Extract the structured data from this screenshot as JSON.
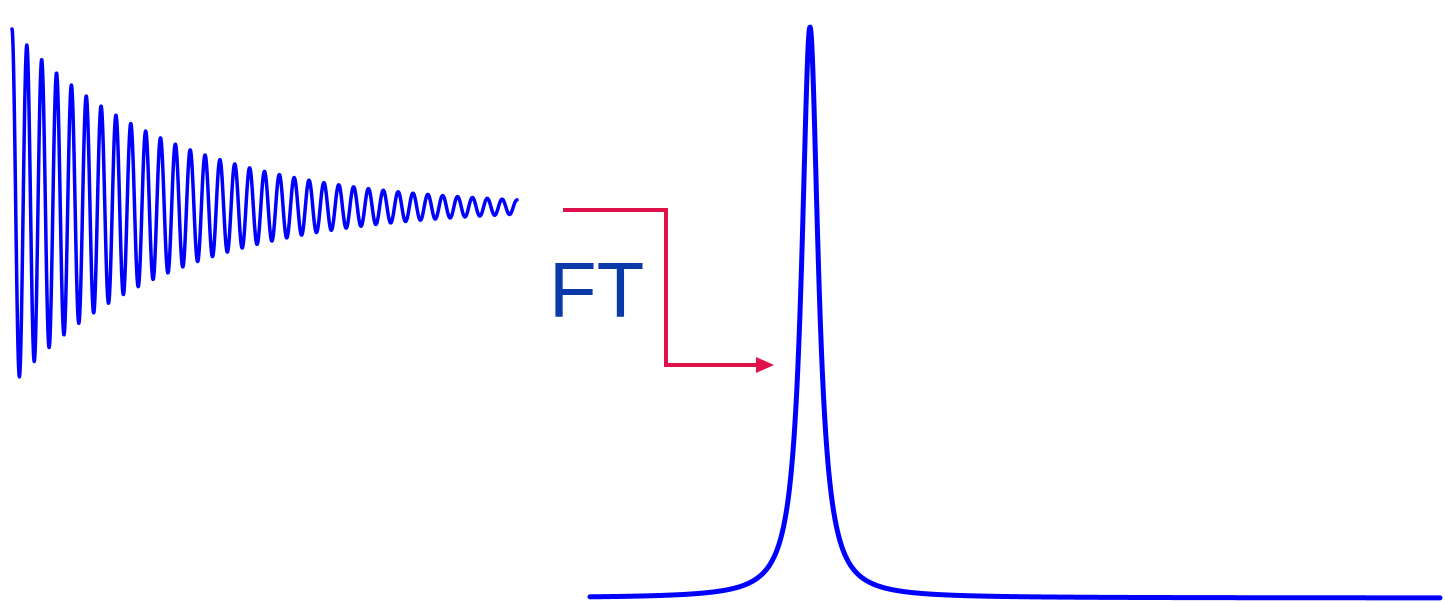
{
  "diagram": {
    "transform_label": "FT",
    "colors": {
      "signal": "#0000ff",
      "arrow": "#e0114a",
      "label": "#0b3aa8",
      "background": "#ffffff"
    },
    "time_domain_signal": {
      "description_type": "decaying oscillation",
      "cycles": 34,
      "decay_ratio_end_to_start": 0.04
    },
    "frequency_domain_signal": {
      "description_type": "single sharp peak",
      "peak_count": 1
    }
  }
}
